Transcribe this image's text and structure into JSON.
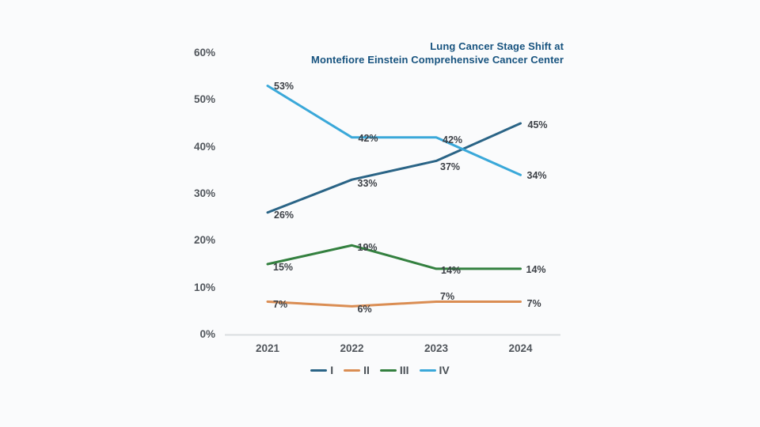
{
  "title": {
    "line1": "Lung Cancer Stage Shift at",
    "line2": "Montefiore Einstein Comprehensive Cancer Center",
    "color": "#17537F"
  },
  "chart_data": {
    "type": "line",
    "x": [
      "2021",
      "2022",
      "2023",
      "2024"
    ],
    "series": [
      {
        "name": "I",
        "color": "#2A6486",
        "values": [
          26,
          33,
          37,
          45
        ],
        "label_offsets": [
          [
            8,
            3
          ],
          [
            7,
            5
          ],
          [
            5,
            8
          ],
          [
            9,
            2
          ]
        ]
      },
      {
        "name": "II",
        "color": "#DA8D53",
        "values": [
          7,
          6,
          7,
          7
        ],
        "label_offsets": [
          [
            7,
            4
          ],
          [
            7,
            4
          ],
          [
            5,
            -6
          ],
          [
            8,
            3
          ]
        ]
      },
      {
        "name": "III",
        "color": "#33803F",
        "values": [
          15,
          19,
          14,
          14
        ],
        "label_offsets": [
          [
            7,
            4
          ],
          [
            7,
            3
          ],
          [
            6,
            2
          ],
          [
            7,
            1
          ]
        ]
      },
      {
        "name": "IV",
        "color": "#3AA8D9",
        "values": [
          53,
          42,
          42,
          34
        ],
        "label_offsets": [
          [
            8,
            0
          ],
          [
            8,
            1
          ],
          [
            8,
            3
          ],
          [
            8,
            1
          ]
        ]
      }
    ],
    "ylim": [
      0,
      60
    ],
    "yticks": [
      0,
      10,
      20,
      30,
      40,
      50,
      60
    ],
    "ytick_suffix": "%",
    "value_suffix": "%",
    "grid": false,
    "legend_position": "bottom",
    "legend_order": [
      "I",
      "II",
      "III",
      "IV"
    ]
  },
  "colors": {
    "background": "#FAFBFC",
    "axis_line": "#D9DCDF",
    "tick_label": "#51565C",
    "data_label": "#3D4147",
    "legend_label": "#4B5157"
  }
}
